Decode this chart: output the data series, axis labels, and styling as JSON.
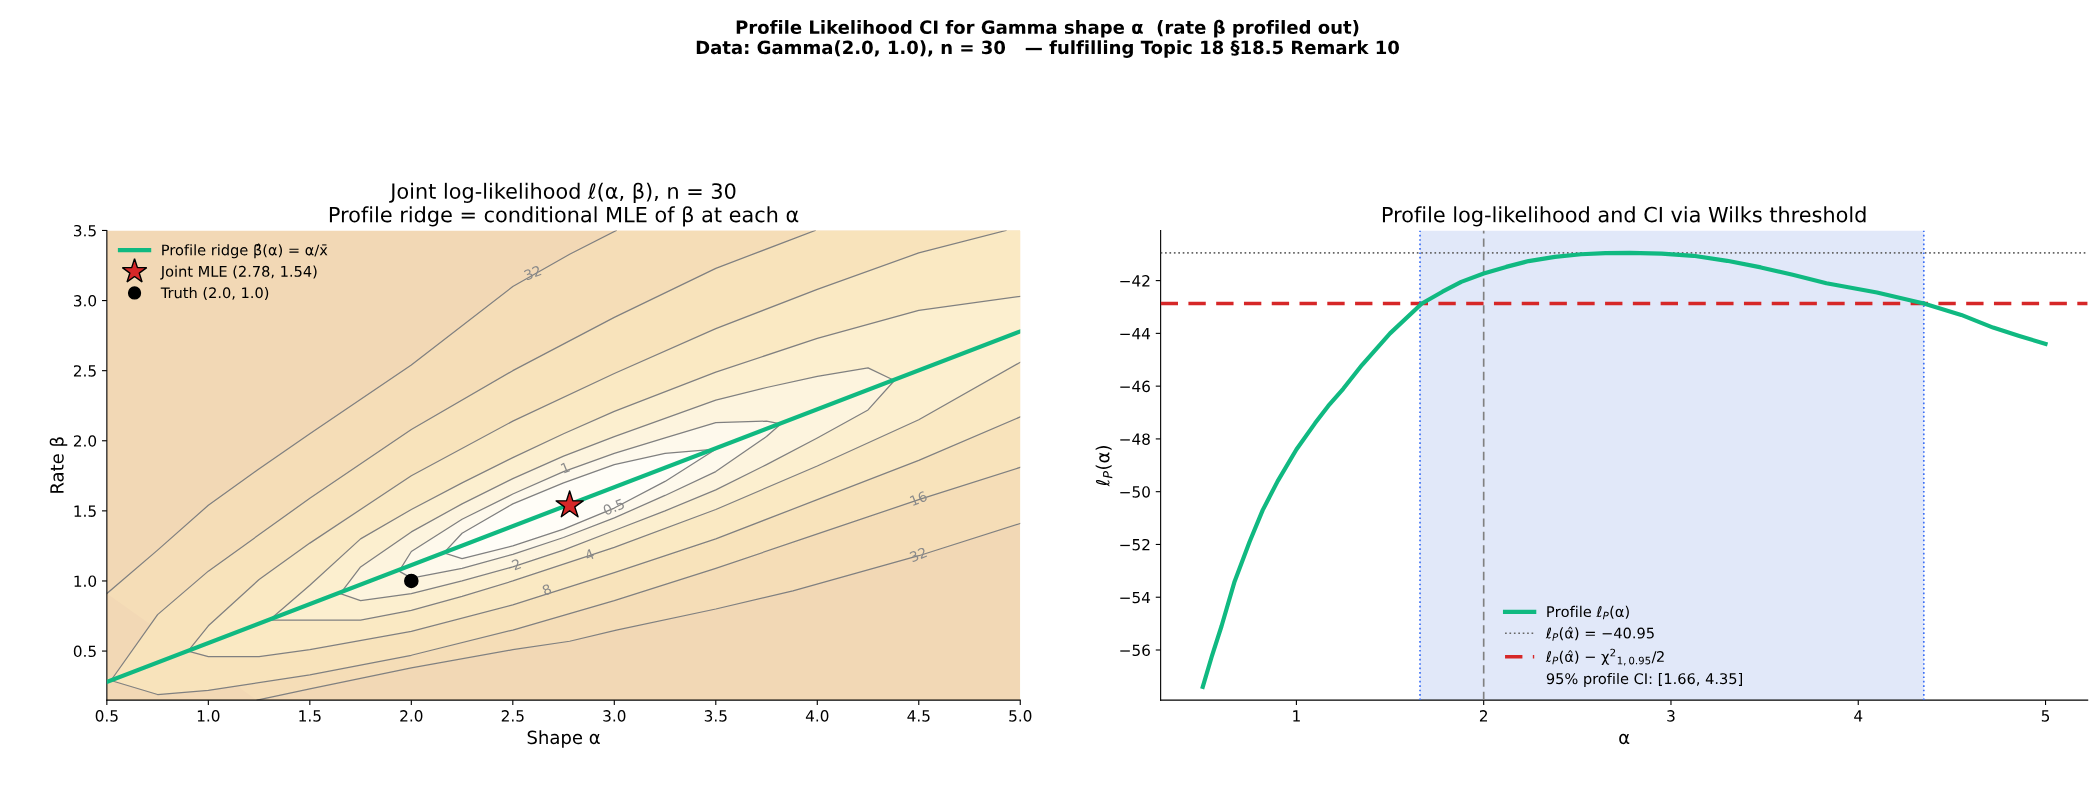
{
  "chart_data": [
    {
      "type": "other",
      "title": "Profile Likelihood CI for Gamma shape α  (rate β profiled out)\nData: Gamma(2.0, 1.0), n = 30   — fulfilling Topic 18 §18.5 Remark 10"
    },
    {
      "type": "line",
      "title": "Joint log-likelihood ℓ(α, β), n = 30\nProfile ridge = conditional MLE of β at each α",
      "xlabel": "Shape α",
      "ylabel": "Rate β",
      "xlim": [
        0.5,
        5.0
      ],
      "ylim": [
        0.15,
        3.5
      ],
      "xticks": [
        0.5,
        {
          "value": 1,
          "label": "1.0"
        },
        1.5,
        {
          "value": 2,
          "label": "2.0"
        },
        2.5,
        {
          "value": 3,
          "label": "3.0"
        },
        3.5,
        {
          "value": 4,
          "label": "4.0"
        },
        4.5,
        {
          "value": 5,
          "label": "5.0"
        }
      ],
      "yticks": [
        0.5,
        {
          "value": 1,
          "label": "1.0"
        },
        1.5,
        {
          "value": 2,
          "label": "2.0"
        },
        2.5,
        {
          "value": 3,
          "label": "3.0"
        },
        3.5
      ],
      "grid": false,
      "legend": "upper left",
      "series": [
        {
          "type": "area",
          "color": "#f5ddb7",
          "line_style": "solid",
          "x": [
            5.0,
            4.5,
            3.88,
            3.5,
            3.01,
            2.78,
            2.5,
            2.0,
            1.5,
            1.24,
            1.0,
            0.5,
            0.75,
            1.0,
            1.24,
            1.5,
            2.0,
            2.5,
            2.78,
            3.01,
            5.0
          ],
          "values": [
            1.41,
            1.18,
            0.93,
            0.8,
            0.65,
            0.57,
            0.51,
            0.38,
            0.23,
            0.15,
            null,
            0.91,
            1.22,
            1.54,
            1.79,
            2.05,
            2.54,
            3.1,
            3.33,
            3.5,
            3.5
          ]
        },
        {
          "type": "area",
          "color": "#f8e3bb",
          "line_style": "solid",
          "x": [
            3.99,
            3.5,
            3.0,
            2.5,
            2.0,
            1.5,
            1.0,
            0.75,
            0.52,
            0.75,
            1.0,
            1.5,
            2.0,
            2.5,
            3.0,
            3.5,
            3.99,
            4.5,
            5.0,
            5.0
          ],
          "values": [
            3.5,
            3.23,
            2.88,
            2.5,
            2.08,
            1.59,
            1.07,
            0.76,
            0.29,
            0.19,
            0.22,
            0.33,
            0.47,
            0.65,
            0.86,
            1.09,
            1.33,
            1.58,
            1.81,
            3.5
          ]
        },
        {
          "type": "area",
          "color": "#fae9c3",
          "line_style": "solid",
          "x": [
            4.93,
            4.5,
            4.0,
            3.5,
            3.0,
            2.5,
            2.0,
            1.5,
            1.25,
            1.0,
            0.9,
            1.0,
            1.25,
            1.5,
            2.0,
            2.5,
            3.0,
            3.5,
            4.0,
            4.5,
            5.0,
            5.0
          ],
          "values": [
            3.5,
            3.34,
            3.08,
            2.8,
            2.48,
            2.14,
            1.75,
            1.27,
            1.01,
            0.68,
            0.5,
            0.46,
            0.46,
            0.51,
            0.64,
            0.83,
            1.06,
            1.3,
            1.58,
            1.86,
            2.17,
            3.5
          ]
        },
        {
          "type": "area",
          "color": "#fcefcf",
          "line_style": "solid",
          "x": [
            5.0,
            4.5,
            4.0,
            3.5,
            3.0,
            2.75,
            2.5,
            2.25,
            2.0,
            1.75,
            1.5,
            1.3,
            1.5,
            1.75,
            2.0,
            2.25,
            2.5,
            2.75,
            3.0,
            3.5,
            4.0,
            4.5,
            5.0,
            5.0
          ],
          "values": [
            3.03,
            2.93,
            2.73,
            2.49,
            2.21,
            2.05,
            1.88,
            1.7,
            1.51,
            1.3,
            0.97,
            0.72,
            0.72,
            0.72,
            0.79,
            0.89,
            1.0,
            1.12,
            1.24,
            1.51,
            1.82,
            2.15,
            2.56,
            3.5
          ]
        },
        {
          "type": "area",
          "color": "#fdf4de",
          "line_style": "solid",
          "x": [
            1.65,
            1.75,
            2.0,
            2.25,
            2.5,
            2.75,
            3.0,
            3.25,
            3.5,
            3.75,
            4.0,
            4.25,
            4.38,
            4.25,
            4.0,
            3.75,
            3.5,
            3.25,
            3.0,
            2.75,
            2.5,
            2.25,
            2.0,
            1.75,
            1.65
          ],
          "values": [
            0.91,
            0.86,
            0.91,
            1.0,
            1.1,
            1.22,
            1.36,
            1.5,
            1.65,
            1.83,
            2.02,
            2.22,
            2.43,
            2.52,
            2.46,
            2.38,
            2.29,
            2.16,
            2.03,
            1.89,
            1.73,
            1.55,
            1.35,
            1.1,
            0.91
          ]
        },
        {
          "type": "area",
          "color": "#fef9ec",
          "line_style": "solid",
          "x": [
            1.94,
            2.0,
            2.25,
            2.5,
            2.75,
            3.0,
            3.25,
            3.5,
            3.75,
            3.82,
            3.75,
            3.5,
            3.25,
            3.0,
            2.75,
            2.5,
            2.25,
            2.0,
            1.94
          ],
          "values": [
            1.07,
            1.02,
            1.09,
            1.19,
            1.31,
            1.45,
            1.61,
            1.78,
            2.03,
            2.12,
            2.14,
            2.13,
            2.02,
            1.91,
            1.78,
            1.62,
            1.44,
            1.21,
            1.07
          ]
        },
        {
          "type": "area",
          "color": "#fffdf7",
          "line_style": "solid",
          "x": [
            2.16,
            2.25,
            2.5,
            2.75,
            3.0,
            3.25,
            3.5,
            3.25,
            3.0,
            2.75,
            2.5,
            2.25,
            2.16
          ],
          "values": [
            1.2,
            1.16,
            1.25,
            1.37,
            1.52,
            1.71,
            1.94,
            1.91,
            1.83,
            1.7,
            1.55,
            1.34,
            1.2
          ]
        },
        {
          "name": "Profile ridge β̂(α) = α/x̄",
          "color": "#10b981",
          "line_style": "solid",
          "x": [
            0.5,
            5.0
          ],
          "values": [
            0.28,
            2.78
          ]
        },
        {
          "type": "scatter",
          "name": "Joint MLE (2.78, 1.54)",
          "color": "#d62728",
          "marker": "star",
          "x": [
            2.78
          ],
          "values": [
            1.54
          ]
        },
        {
          "type": "scatter",
          "name": "Truth (2.0, 1.0)",
          "color": "#000000",
          "marker": "circle",
          "x": [
            2.0
          ],
          "values": [
            1.0
          ]
        }
      ],
      "annotations": [
        {
          "text": "32",
          "x": 2.6,
          "y": 3.19
        },
        {
          "text": "32",
          "x": 4.5,
          "y": 1.18
        },
        {
          "text": "16",
          "x": 4.5,
          "y": 1.58
        },
        {
          "text": "8",
          "x": 2.67,
          "y": 0.93
        },
        {
          "text": "4",
          "x": 2.88,
          "y": 1.18
        },
        {
          "text": "2",
          "x": 2.52,
          "y": 1.11
        },
        {
          "text": "1",
          "x": 2.76,
          "y": 1.8
        },
        {
          "text": "0.5",
          "x": 3.0,
          "y": 1.52
        }
      ]
    },
    {
      "type": "line",
      "title": "Profile log-likelihood and CI via Wilks threshold",
      "xlabel": "α",
      "ylabel": "ℓ$_{P}$(α)",
      "xlim": [
        0.275,
        5.225
      ],
      "ylim": [
        -57.9,
        -40.1
      ],
      "xticks": [
        1,
        2,
        3,
        4,
        5
      ],
      "yticks": [
        {
          "value": -56,
          "label": "−56"
        },
        {
          "value": -54,
          "label": "−54"
        },
        {
          "value": -52,
          "label": "−52"
        },
        {
          "value": -50,
          "label": "−50"
        },
        {
          "value": -48,
          "label": "−48"
        },
        {
          "value": -46,
          "label": "−46"
        },
        {
          "value": -44,
          "label": "−44"
        },
        {
          "value": -42,
          "label": "−42"
        }
      ],
      "grid": false,
      "legend": "lower center",
      "series": [
        {
          "name": "Profile ℓ$_{P}$(α)",
          "color": "#10b981",
          "line_style": "solid",
          "x": [
            0.5,
            0.55,
            0.6,
            0.67,
            0.75,
            0.82,
            0.9,
            1.0,
            1.1,
            1.17,
            1.25,
            1.35,
            1.5,
            1.67,
            1.78,
            1.88,
            2.0,
            2.12,
            2.24,
            2.38,
            2.52,
            2.65,
            2.78,
            2.95,
            3.12,
            3.3,
            3.48,
            3.65,
            3.83,
            4.1,
            4.35,
            4.55,
            4.72,
            4.86,
            5.0
          ],
          "values": [
            -57.4,
            -56.2,
            -55.1,
            -53.4,
            -51.9,
            -50.7,
            -49.6,
            -48.4,
            -47.4,
            -46.75,
            -46.1,
            -45.2,
            -44.0,
            -42.87,
            -42.42,
            -42.05,
            -41.73,
            -41.48,
            -41.26,
            -41.1,
            -41.0,
            -40.96,
            -40.95,
            -40.98,
            -41.06,
            -41.25,
            -41.5,
            -41.78,
            -42.1,
            -42.45,
            -42.87,
            -43.3,
            -43.78,
            -44.1,
            -44.4
          ]
        }
      ],
      "bands": [
        {
          "axis": "x",
          "from": 1.66,
          "to": 4.35,
          "label": "95% profile CI: [1.66, 4.35]",
          "color": "#e1e8f9"
        }
      ],
      "ref_lines": [
        {
          "axis": "y",
          "value": -40.95,
          "label": "ℓ$_{P}$(α̂) = −40.95",
          "color": "#666666",
          "line_style": "dotted"
        },
        {
          "axis": "y",
          "value": -42.87,
          "label": "ℓ$_{P}$(α̂) − χ$^{2}$$_{1,0.95}$/2",
          "color": "#d62728",
          "line_style": "dashed"
        },
        {
          "axis": "x",
          "value": 2.0,
          "color": "#808080",
          "line_style": "dashed"
        },
        {
          "axis": "x",
          "value": 1.66,
          "color": "#3b6ff5",
          "line_style": "dotted"
        },
        {
          "axis": "x",
          "value": 4.35,
          "color": "#3b6ff5",
          "line_style": "dotted"
        }
      ]
    }
  ]
}
